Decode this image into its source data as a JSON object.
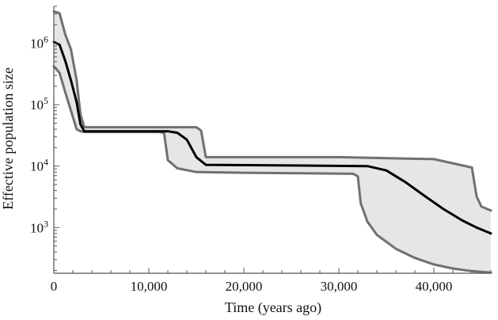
{
  "chart_data": {
    "type": "line",
    "xlabel": "Time (years ago)",
    "ylabel": "Effective population size",
    "x_scale": "linear",
    "y_scale": "log",
    "xlim": [
      0,
      46000
    ],
    "ylim": [
      180,
      4000000
    ],
    "x_ticks": [
      {
        "value": 0,
        "label": "0"
      },
      {
        "value": 10000,
        "label": "10,000"
      },
      {
        "value": 20000,
        "label": "20,000"
      },
      {
        "value": 30000,
        "label": "30,000"
      },
      {
        "value": 40000,
        "label": "40,000"
      }
    ],
    "y_ticks": [
      {
        "value": 1000,
        "base": "10",
        "exp": "3"
      },
      {
        "value": 10000,
        "base": "10",
        "exp": "4"
      },
      {
        "value": 100000,
        "base": "10",
        "exp": "5"
      },
      {
        "value": 1000000,
        "base": "10",
        "exp": "6"
      }
    ],
    "grid": false,
    "legend": "none",
    "colors": {
      "median": "#000000",
      "bounds": "#707070",
      "band": "#e6e6e6"
    },
    "series": [
      {
        "role": "upper",
        "x": [
          0,
          600,
          1200,
          1800,
          2400,
          2800,
          3200,
          10000,
          15000,
          15500,
          16000,
          30000,
          40000,
          44000,
          44500,
          45000,
          46000
        ],
        "y": [
          3300000,
          3100000,
          1400000,
          800000,
          250000,
          70000,
          43000,
          43000,
          43000,
          38000,
          14000,
          14000,
          13000,
          9500,
          3200,
          2200,
          1900
        ]
      },
      {
        "role": "median",
        "x": [
          0,
          600,
          1200,
          1800,
          2400,
          2800,
          3200,
          12000,
          13000,
          14000,
          15000,
          16000,
          33000,
          35000,
          37000,
          39000,
          41000,
          43000,
          44500,
          46000
        ],
        "y": [
          1050000,
          950000,
          520000,
          250000,
          110000,
          48000,
          37000,
          37000,
          35000,
          27000,
          14000,
          10500,
          10000,
          8500,
          5500,
          3300,
          2000,
          1300,
          1000,
          800
        ]
      },
      {
        "role": "lower",
        "x": [
          0,
          600,
          1200,
          1800,
          2400,
          2800,
          3200,
          11000,
          11600,
          12000,
          13000,
          15000,
          20000,
          31500,
          32000,
          32300,
          33000,
          34000,
          36000,
          38000,
          40000,
          42000,
          44000,
          46000
        ],
        "y": [
          420000,
          330000,
          160000,
          80000,
          40000,
          37000,
          36000,
          36000,
          35000,
          12500,
          9200,
          8000,
          7800,
          7500,
          6800,
          2500,
          1250,
          760,
          450,
          320,
          250,
          215,
          195,
          185
        ]
      }
    ]
  }
}
